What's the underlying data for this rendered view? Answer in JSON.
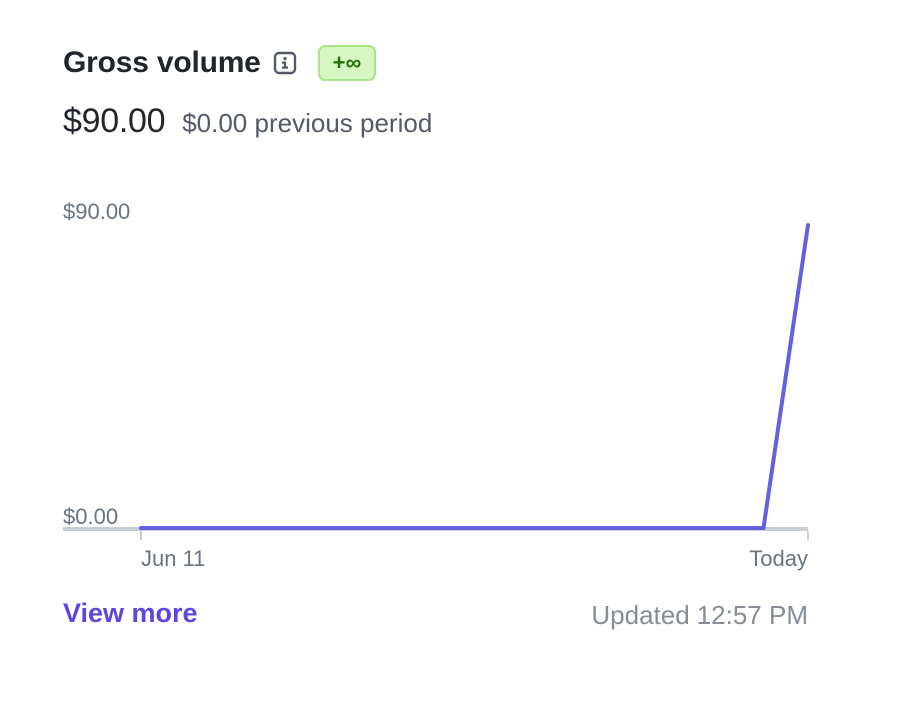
{
  "widget": {
    "title": "Gross volume",
    "info_icon": "info-icon",
    "badge": "+∞",
    "amount": "$90.00",
    "previous_amount": "$0.00",
    "previous_label": "previous period",
    "view_more_label": "View more",
    "updated_label": "Updated",
    "updated_time": "12:57 PM"
  },
  "colors": {
    "line": "#6461e0",
    "badge_bg": "#d7f7c2",
    "badge_border": "#a8e58c",
    "badge_text": "#217005",
    "link": "#5b47e0"
  },
  "chart_data": {
    "type": "line",
    "x_tick_labels": [
      "Jun 11",
      "Today"
    ],
    "y_tick_labels": [
      "$90.00",
      "$0.00"
    ],
    "ylim": [
      0,
      90
    ],
    "series": [
      {
        "values": [
          0,
          0,
          0,
          0,
          0,
          0,
          0,
          0,
          0,
          0,
          0,
          0,
          0,
          0,
          0,
          90
        ]
      }
    ]
  }
}
